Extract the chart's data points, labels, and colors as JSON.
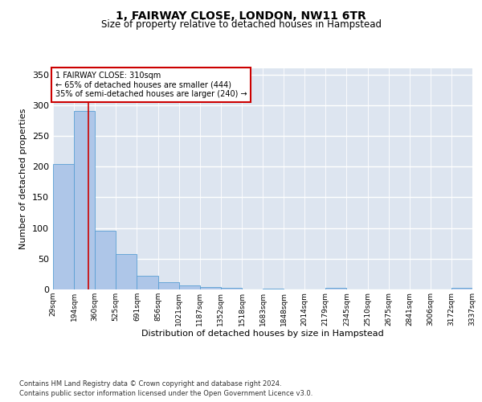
{
  "title": "1, FAIRWAY CLOSE, LONDON, NW11 6TR",
  "subtitle": "Size of property relative to detached houses in Hampstead",
  "xlabel": "Distribution of detached houses by size in Hampstead",
  "ylabel": "Number of detached properties",
  "bar_edges": [
    29,
    194,
    360,
    525,
    691,
    856,
    1021,
    1187,
    1352,
    1518,
    1683,
    1848,
    2014,
    2179,
    2345,
    2510,
    2675,
    2841,
    3006,
    3172,
    3337
  ],
  "bar_heights": [
    204,
    291,
    96,
    57,
    22,
    12,
    6,
    4,
    2,
    0,
    1,
    0,
    0,
    2,
    0,
    0,
    0,
    0,
    0,
    2
  ],
  "bar_color": "#aec6e8",
  "bar_edge_color": "#5a9fd4",
  "property_size": 310,
  "property_label": "1 FAIRWAY CLOSE: 310sqm",
  "annotation_line1": "← 65% of detached houses are smaller (444)",
  "annotation_line2": "35% of semi-detached houses are larger (240) →",
  "vline_color": "#cc0000",
  "ylim": [
    0,
    360
  ],
  "yticks": [
    0,
    50,
    100,
    150,
    200,
    250,
    300,
    350
  ],
  "background_color": "#dde5f0",
  "footer_line1": "Contains HM Land Registry data © Crown copyright and database right 2024.",
  "footer_line2": "Contains public sector information licensed under the Open Government Licence v3.0.",
  "tick_labels": [
    "29sqm",
    "194sqm",
    "360sqm",
    "525sqm",
    "691sqm",
    "856sqm",
    "1021sqm",
    "1187sqm",
    "1352sqm",
    "1518sqm",
    "1683sqm",
    "1848sqm",
    "2014sqm",
    "2179sqm",
    "2345sqm",
    "2510sqm",
    "2675sqm",
    "2841sqm",
    "3006sqm",
    "3172sqm",
    "3337sqm"
  ]
}
